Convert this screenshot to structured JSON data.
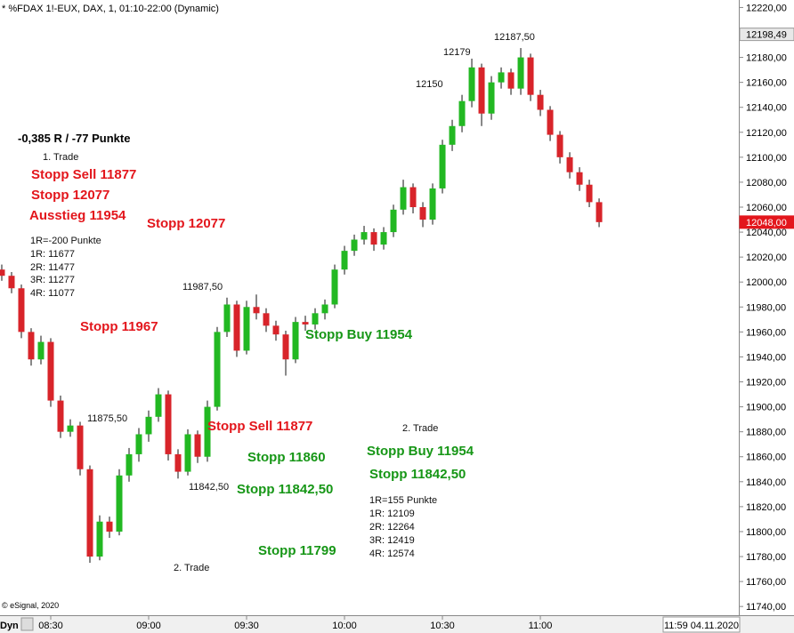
{
  "chart_data": {
    "type": "candlestick",
    "title": "* %FDAX 1!-EUX, DAX, 1, 01:10-22:00 (Dynamic)",
    "copyright": "© eSignal, 2020",
    "mode_label": "Dyn",
    "timestamp": "11:59 04.11.2020",
    "up_color": "#22b822",
    "down_color": "#d8242a",
    "categories": [
      "08:15",
      "08:18",
      "08:21",
      "08:24",
      "08:27",
      "08:30",
      "08:33",
      "08:36",
      "08:39",
      "08:42",
      "08:45",
      "08:48",
      "08:51",
      "08:54",
      "08:57",
      "09:00",
      "09:03",
      "09:06",
      "09:09",
      "09:12",
      "09:15",
      "09:18",
      "09:21",
      "09:24",
      "09:27",
      "09:30",
      "09:33",
      "09:36",
      "09:39",
      "09:42",
      "09:45",
      "09:48",
      "09:51",
      "09:54",
      "09:57",
      "10:00",
      "10:03",
      "10:06",
      "10:09",
      "10:12",
      "10:15",
      "10:18",
      "10:21",
      "10:24",
      "10:27",
      "10:30",
      "10:33",
      "10:36",
      "10:39",
      "10:42",
      "10:45",
      "10:48",
      "10:51",
      "10:54",
      "10:57",
      "11:00",
      "11:03",
      "11:06",
      "11:09",
      "11:12",
      "11:15",
      "11:18"
    ],
    "open": [
      12010,
      12005,
      11995,
      11960,
      11938,
      11952,
      11905,
      11880,
      11885,
      11850,
      11780,
      11808,
      11800,
      11845,
      11862,
      11878,
      11892,
      11910,
      11862,
      11848,
      11878,
      11860,
      11900,
      11960,
      11982,
      11945,
      11980,
      11975,
      11965,
      11958,
      11938,
      11968,
      11966,
      11975,
      11982,
      12010,
      12025,
      12034,
      12040,
      12030,
      12040,
      12058,
      12076,
      12060,
      12050,
      12075,
      12110,
      12125,
      12145,
      12172,
      12135,
      12160,
      12168,
      12155,
      12180,
      12150,
      12138,
      12118,
      12100,
      12088,
      12078,
      12064
    ],
    "high": [
      12014,
      12008,
      11998,
      11963,
      11957,
      11955,
      11909,
      11890,
      11888,
      11853,
      11813,
      11812,
      11850,
      11867,
      11883,
      11897,
      11915,
      11913,
      11866,
      11882,
      11881,
      11905,
      11964,
      11987.5,
      11985,
      11985,
      11990,
      11979,
      11969,
      11961,
      11972,
      11973,
      11979,
      11986,
      12014,
      12029,
      12038,
      12045,
      12043,
      12044,
      12062,
      12082,
      12079,
      12064,
      12079,
      12114,
      12130,
      12150,
      12179,
      12175,
      12165,
      12172,
      12171,
      12187.5,
      12183,
      12154,
      12141,
      12121,
      12104,
      12092,
      12082,
      12067
    ],
    "low": [
      12001,
      11991,
      11955,
      11933,
      11934,
      11900,
      11875,
      11876,
      11845,
      11775,
      11777,
      11795,
      11797,
      11840,
      11856,
      11872,
      11888,
      11857,
      11842.5,
      11845,
      11855,
      11856,
      11897,
      11956,
      11940,
      11942,
      11970,
      11960,
      11953,
      11925,
      11935,
      11961,
      11962,
      11970,
      11979,
      12006,
      12021,
      12030,
      12025,
      12026,
      12036,
      12054,
      12055,
      12044,
      12046,
      12071,
      12105,
      12120,
      12140,
      12125,
      12130,
      12155,
      12150,
      12150,
      12145,
      12133,
      12113,
      12095,
      12083,
      12073,
      12060,
      12044
    ],
    "close": [
      12005,
      11995,
      11960,
      11938,
      11952,
      11905,
      11880,
      11885,
      11850,
      11780,
      11808,
      11800,
      11845,
      11862,
      11878,
      11892,
      11910,
      11862,
      11848,
      11878,
      11860,
      11900,
      11960,
      11982,
      11945,
      11980,
      11975,
      11965,
      11958,
      11938,
      11968,
      11966,
      11975,
      11982,
      12010,
      12025,
      12034,
      12040,
      12030,
      12040,
      12058,
      12076,
      12060,
      12050,
      12075,
      12110,
      12125,
      12145,
      12172,
      12135,
      12160,
      12168,
      12155,
      12180,
      12150,
      12138,
      12118,
      12100,
      12088,
      12078,
      12064,
      12048
    ],
    "ylim": [
      11733,
      12226
    ],
    "yticks": [
      {
        "value": 11740,
        "label": "11740,00"
      },
      {
        "value": 11760,
        "label": "11760,00"
      },
      {
        "value": 11780,
        "label": "11780,00"
      },
      {
        "value": 11800,
        "label": "11800,00"
      },
      {
        "value": 11820,
        "label": "11820,00"
      },
      {
        "value": 11840,
        "label": "11840,00"
      },
      {
        "value": 11860,
        "label": "11860,00"
      },
      {
        "value": 11880,
        "label": "11880,00"
      },
      {
        "value": 11900,
        "label": "11900,00"
      },
      {
        "value": 11920,
        "label": "11920,00"
      },
      {
        "value": 11940,
        "label": "11940,00"
      },
      {
        "value": 11960,
        "label": "11960,00"
      },
      {
        "value": 11980,
        "label": "11980,00"
      },
      {
        "value": 12000,
        "label": "12000,00"
      },
      {
        "value": 12020,
        "label": "12020,00"
      },
      {
        "value": 12040,
        "label": "12040,00"
      },
      {
        "value": 12060,
        "label": "12060,00"
      },
      {
        "value": 12080,
        "label": "12080,00"
      },
      {
        "value": 12100,
        "label": "12100,00"
      },
      {
        "value": 12120,
        "label": "12120,00"
      },
      {
        "value": 12140,
        "label": "12140,00"
      },
      {
        "value": 12160,
        "label": "12160,00"
      },
      {
        "value": 12180,
        "label": "12180,00"
      },
      {
        "value": 12200,
        "label": "12200,00"
      },
      {
        "value": 12220,
        "label": "12220,00"
      }
    ],
    "xticks": [
      "08:30",
      "09:00",
      "09:30",
      "10:00",
      "10:30",
      "11:00"
    ],
    "price_markers": [
      {
        "value": 12198.49,
        "label": "12198,49",
        "style": "gray"
      },
      {
        "value": 12048,
        "label": "12048,00",
        "style": "red"
      }
    ],
    "annotations": [
      {
        "text": "-0,385 R / -77 Punkte",
        "style": "black"
      },
      {
        "text": "1. Trade",
        "style": "note"
      },
      {
        "text": "Stopp Sell 11877",
        "style": "red"
      },
      {
        "text": "Stopp 12077",
        "style": "red"
      },
      {
        "text": "Ausstieg 11954",
        "style": "red"
      },
      {
        "text": "Stopp 12077",
        "style": "red"
      },
      {
        "text": "1R=-200 Punkte",
        "style": "note"
      },
      {
        "text": "1R: 11677",
        "style": "note"
      },
      {
        "text": "2R: 11477",
        "style": "note"
      },
      {
        "text": "3R: 11277",
        "style": "note"
      },
      {
        "text": "4R: 11077",
        "style": "note"
      },
      {
        "text": "Stopp 11967",
        "style": "red"
      },
      {
        "text": "11987,50",
        "style": "note"
      },
      {
        "text": "11875,50",
        "style": "note"
      },
      {
        "text": "Stopp Buy 11954",
        "style": "green"
      },
      {
        "text": "Stopp Sell 11877",
        "style": "red"
      },
      {
        "text": "2. Trade",
        "style": "note"
      },
      {
        "text": "Stopp Buy 11954",
        "style": "green"
      },
      {
        "text": "Stopp 11860",
        "style": "green"
      },
      {
        "text": "Stopp 11842,50",
        "style": "green"
      },
      {
        "text": "11842,50",
        "style": "note"
      },
      {
        "text": "Stopp 11842,50",
        "style": "green"
      },
      {
        "text": "1R=155 Punkte",
        "style": "note"
      },
      {
        "text": "1R: 12109",
        "style": "note"
      },
      {
        "text": "2R: 12264",
        "style": "note"
      },
      {
        "text": "3R: 12419",
        "style": "note"
      },
      {
        "text": "4R: 12574",
        "style": "note"
      },
      {
        "text": "Stopp 11799",
        "style": "green"
      },
      {
        "text": "2. Trade",
        "style": "note"
      },
      {
        "text": "12179",
        "style": "note"
      },
      {
        "text": "12187,50",
        "style": "note"
      },
      {
        "text": "12150",
        "style": "note"
      }
    ]
  }
}
